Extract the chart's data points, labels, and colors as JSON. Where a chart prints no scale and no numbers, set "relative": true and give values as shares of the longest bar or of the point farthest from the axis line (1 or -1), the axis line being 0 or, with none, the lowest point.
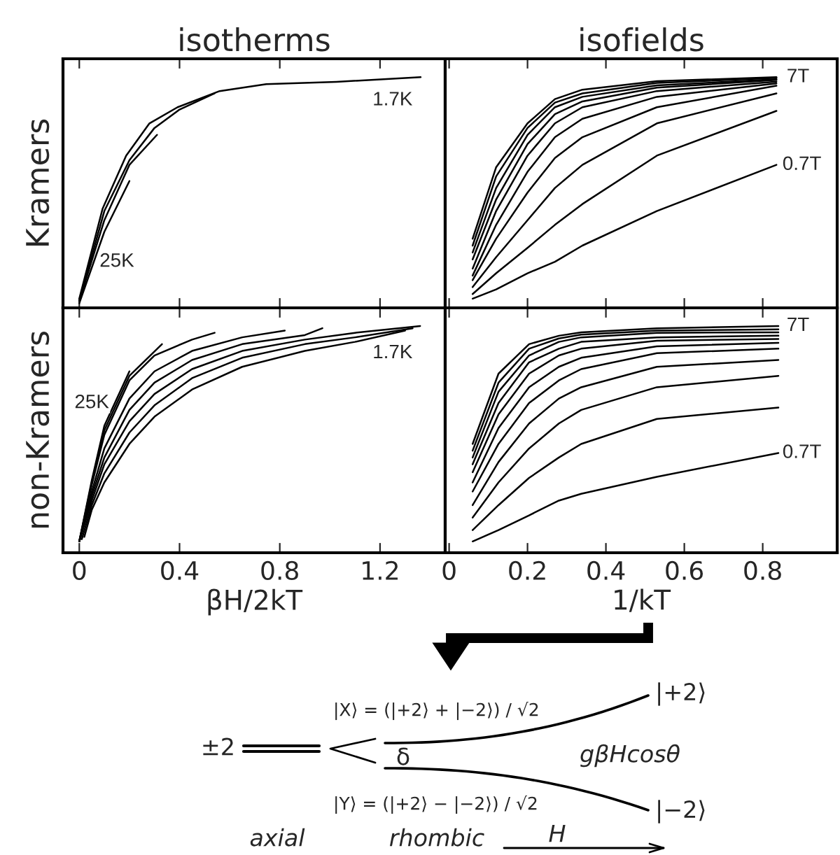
{
  "chart_data": [
    {
      "type": "line",
      "title": "isotherms",
      "ylabel": "Kramers",
      "relative": true,
      "xlim": [
        -0.065,
        1.46
      ],
      "xticks": [
        0,
        0.4,
        0.8,
        1.2
      ],
      "tick_labels": false,
      "series": [
        {
          "color": "#000000",
          "x": [
            0,
            0.093,
            0.187,
            0.28,
            0.392,
            0.56,
            0.746,
            1.026,
            1.362
          ],
          "values": [
            0.04,
            0.43,
            0.66,
            0.8,
            0.87,
            0.94,
            0.97,
            0.98,
            1.0
          ]
        },
        {
          "color": "#000000",
          "x": [
            0,
            0.1,
            0.2,
            0.3,
            0.4,
            0.54
          ],
          "values": [
            0.03,
            0.42,
            0.64,
            0.78,
            0.86,
            0.93
          ]
        },
        {
          "color": "#000000",
          "x": [
            0,
            0.1,
            0.2,
            0.31
          ],
          "values": [
            0.03,
            0.38,
            0.62,
            0.75
          ]
        },
        {
          "color": "#000000",
          "x": [
            0,
            0.1,
            0.2
          ],
          "values": [
            0.02,
            0.33,
            0.55
          ]
        }
      ],
      "annotations": [
        {
          "text": "1.7K",
          "x": 1.25,
          "y": 0.9
        },
        {
          "text": "25K",
          "x": 0.15,
          "y": 0.2
        }
      ]
    },
    {
      "type": "line",
      "title": "isofields",
      "relative": true,
      "xlim": [
        -0.01,
        0.99
      ],
      "xticks": [
        0,
        0.2,
        0.4,
        0.6,
        0.8
      ],
      "tick_labels": false,
      "series": [
        {
          "color": "#000000",
          "x": [
            0.06,
            0.12,
            0.2,
            0.27,
            0.34,
            0.53,
            0.835
          ],
          "values": [
            0.3,
            0.61,
            0.8,
            0.905,
            0.946,
            0.983,
            1.0
          ]
        },
        {
          "color": "#000000",
          "x": [
            0.06,
            0.12,
            0.2,
            0.27,
            0.34,
            0.53,
            0.835
          ],
          "values": [
            0.27,
            0.57,
            0.78,
            0.89,
            0.93,
            0.975,
            0.997
          ]
        },
        {
          "color": "#000000",
          "x": [
            0.06,
            0.12,
            0.2,
            0.27,
            0.34,
            0.53,
            0.835
          ],
          "values": [
            0.24,
            0.52,
            0.75,
            0.87,
            0.915,
            0.965,
            0.991
          ]
        },
        {
          "color": "#000000",
          "x": [
            0.06,
            0.12,
            0.2,
            0.27,
            0.34,
            0.53,
            0.835
          ],
          "values": [
            0.21,
            0.47,
            0.71,
            0.84,
            0.895,
            0.955,
            0.988
          ]
        },
        {
          "color": "#000000",
          "x": [
            0.06,
            0.12,
            0.2,
            0.27,
            0.34,
            0.53,
            0.835
          ],
          "values": [
            0.17,
            0.42,
            0.66,
            0.8,
            0.87,
            0.94,
            0.981
          ]
        },
        {
          "color": "#000000",
          "x": [
            0.06,
            0.12,
            0.2,
            0.27,
            0.34,
            0.53,
            0.835
          ],
          "values": [
            0.14,
            0.36,
            0.59,
            0.74,
            0.82,
            0.915,
            0.973
          ]
        },
        {
          "color": "#000000",
          "x": [
            0.06,
            0.12,
            0.2,
            0.27,
            0.34,
            0.53,
            0.835
          ],
          "values": [
            0.12,
            0.3,
            0.5,
            0.65,
            0.74,
            0.87,
            0.963
          ]
        },
        {
          "color": "#000000",
          "x": [
            0.06,
            0.12,
            0.2,
            0.27,
            0.34,
            0.53,
            0.835
          ],
          "values": [
            0.09,
            0.22,
            0.38,
            0.52,
            0.62,
            0.8,
            0.93
          ]
        },
        {
          "color": "#000000",
          "x": [
            0.06,
            0.12,
            0.2,
            0.27,
            0.34,
            0.53,
            0.835
          ],
          "values": [
            0.06,
            0.15,
            0.26,
            0.36,
            0.45,
            0.66,
            0.854
          ]
        },
        {
          "color": "#000000",
          "x": [
            0.06,
            0.12,
            0.2,
            0.27,
            0.34,
            0.53,
            0.835
          ],
          "values": [
            0.04,
            0.08,
            0.15,
            0.2,
            0.27,
            0.42,
            0.62
          ]
        }
      ],
      "annotations": [
        {
          "text": "7T",
          "x": 0.89,
          "y": 1.0
        },
        {
          "text": "0.7T",
          "x": 0.9,
          "y": 0.62
        }
      ]
    },
    {
      "type": "line",
      "ylabel": "non-Kramers",
      "xlabel": "βH/2kT",
      "relative": true,
      "xlim": [
        -0.065,
        1.46
      ],
      "xticks": [
        0,
        0.4,
        0.8,
        1.2
      ],
      "tick_labels": "x",
      "series": [
        {
          "color": "#000000",
          "x": [
            0,
            0.05,
            0.1,
            0.2
          ],
          "values": [
            0.05,
            0.32,
            0.56,
            0.8
          ]
        },
        {
          "color": "#000000",
          "x": [
            0,
            0.05,
            0.1,
            0.2,
            0.33
          ],
          "values": [
            0.05,
            0.31,
            0.54,
            0.78,
            0.92
          ]
        },
        {
          "color": "#000000",
          "x": [
            0,
            0.05,
            0.1,
            0.2,
            0.3,
            0.45,
            0.54
          ],
          "values": [
            0.05,
            0.3,
            0.52,
            0.76,
            0.87,
            0.94,
            0.97
          ]
        },
        {
          "color": "#000000",
          "x": [
            0,
            0.05,
            0.1,
            0.2,
            0.3,
            0.45,
            0.65,
            0.82
          ],
          "values": [
            0.05,
            0.27,
            0.46,
            0.68,
            0.8,
            0.89,
            0.95,
            0.98
          ]
        },
        {
          "color": "#000000",
          "x": [
            0,
            0.05,
            0.1,
            0.2,
            0.3,
            0.45,
            0.65,
            0.9,
            0.97
          ],
          "values": [
            0.05,
            0.25,
            0.42,
            0.63,
            0.75,
            0.85,
            0.92,
            0.96,
            0.99
          ]
        },
        {
          "color": "#000000",
          "x": [
            0,
            0.05,
            0.1,
            0.2,
            0.3,
            0.45,
            0.65,
            0.9,
            1.1,
            1.36
          ],
          "values": [
            0.05,
            0.23,
            0.39,
            0.58,
            0.7,
            0.81,
            0.89,
            0.94,
            0.97,
            1.0
          ]
        },
        {
          "color": "#000000",
          "x": [
            0.01,
            0.05,
            0.1,
            0.2,
            0.3,
            0.45,
            0.65,
            0.9,
            1.1,
            1.33
          ],
          "values": [
            0.06,
            0.21,
            0.35,
            0.53,
            0.65,
            0.77,
            0.86,
            0.92,
            0.95,
            0.99
          ]
        },
        {
          "color": "#000000",
          "x": [
            0.02,
            0.05,
            0.1,
            0.2,
            0.3,
            0.45,
            0.65,
            0.9,
            1.1,
            1.3
          ],
          "values": [
            0.07,
            0.19,
            0.31,
            0.48,
            0.6,
            0.72,
            0.82,
            0.89,
            0.93,
            0.98
          ]
        }
      ],
      "annotations": [
        {
          "text": "1.7K",
          "x": 1.25,
          "y": 0.88
        },
        {
          "text": "25K",
          "x": 0.05,
          "y": 0.66
        }
      ]
    },
    {
      "type": "line",
      "xlabel": "1/kT",
      "relative": true,
      "xlim": [
        -0.01,
        0.99
      ],
      "xticks": [
        0,
        0.2,
        0.4,
        0.6,
        0.8
      ],
      "tick_labels": "x",
      "series": [
        {
          "color": "#000000",
          "x": [
            0.06,
            0.126,
            0.204,
            0.28,
            0.337,
            0.53,
            0.84
          ],
          "values": [
            0.48,
            0.79,
            0.92,
            0.957,
            0.972,
            0.99,
            1.0
          ]
        },
        {
          "color": "#000000",
          "x": [
            0.06,
            0.126,
            0.204,
            0.28,
            0.337,
            0.53,
            0.84
          ],
          "values": [
            0.45,
            0.75,
            0.9,
            0.945,
            0.962,
            0.98,
            0.985
          ]
        },
        {
          "color": "#000000",
          "x": [
            0.06,
            0.126,
            0.204,
            0.28,
            0.337,
            0.53,
            0.84
          ],
          "values": [
            0.42,
            0.71,
            0.87,
            0.93,
            0.95,
            0.97,
            0.972
          ]
        },
        {
          "color": "#000000",
          "x": [
            0.06,
            0.126,
            0.204,
            0.28,
            0.337,
            0.53,
            0.84
          ],
          "values": [
            0.39,
            0.66,
            0.84,
            0.9,
            0.93,
            0.95,
            0.957
          ]
        },
        {
          "color": "#000000",
          "x": [
            0.06,
            0.126,
            0.204,
            0.28,
            0.337,
            0.53,
            0.84
          ],
          "values": [
            0.355,
            0.61,
            0.79,
            0.87,
            0.9,
            0.935,
            0.943
          ]
        },
        {
          "color": "#000000",
          "x": [
            0.06,
            0.126,
            0.204,
            0.28,
            0.337,
            0.53,
            0.84
          ],
          "values": [
            0.31,
            0.55,
            0.73,
            0.82,
            0.86,
            0.91,
            0.926
          ]
        },
        {
          "color": "#000000",
          "x": [
            0.06,
            0.126,
            0.204,
            0.28,
            0.337,
            0.53,
            0.84
          ],
          "values": [
            0.27,
            0.48,
            0.66,
            0.76,
            0.81,
            0.88,
            0.9
          ]
        },
        {
          "color": "#000000",
          "x": [
            0.06,
            0.126,
            0.204,
            0.28,
            0.337,
            0.53,
            0.84
          ],
          "values": [
            0.21,
            0.4,
            0.57,
            0.68,
            0.73,
            0.82,
            0.85
          ]
        },
        {
          "color": "#000000",
          "x": [
            0.06,
            0.126,
            0.204,
            0.28,
            0.337,
            0.53,
            0.84
          ],
          "values": [
            0.155,
            0.31,
            0.46,
            0.57,
            0.63,
            0.73,
            0.78
          ]
        },
        {
          "color": "#000000",
          "x": [
            0.06,
            0.126,
            0.204,
            0.28,
            0.337,
            0.53,
            0.84
          ],
          "values": [
            0.1,
            0.21,
            0.33,
            0.42,
            0.48,
            0.59,
            0.64
          ]
        },
        {
          "color": "#000000",
          "x": [
            0.06,
            0.126,
            0.204,
            0.28,
            0.337,
            0.53,
            0.84
          ],
          "values": [
            0.05,
            0.1,
            0.165,
            0.23,
            0.26,
            0.335,
            0.44
          ]
        }
      ],
      "annotations": [
        {
          "text": "7T",
          "x": 0.89,
          "y": 1.0
        },
        {
          "text": "0.7T",
          "x": 0.9,
          "y": 0.44
        }
      ]
    },
    {
      "type": "other",
      "annotations": [
        "±2",
        "|X⟩ = (|+2⟩ + |−2⟩) / √2",
        "δ",
        "gβHcosθ",
        "|Y⟩ = (|+2⟩ − |−2⟩) / √2",
        "|+2⟩",
        "|−2⟩",
        "axial",
        "rhombic",
        "H"
      ]
    }
  ]
}
